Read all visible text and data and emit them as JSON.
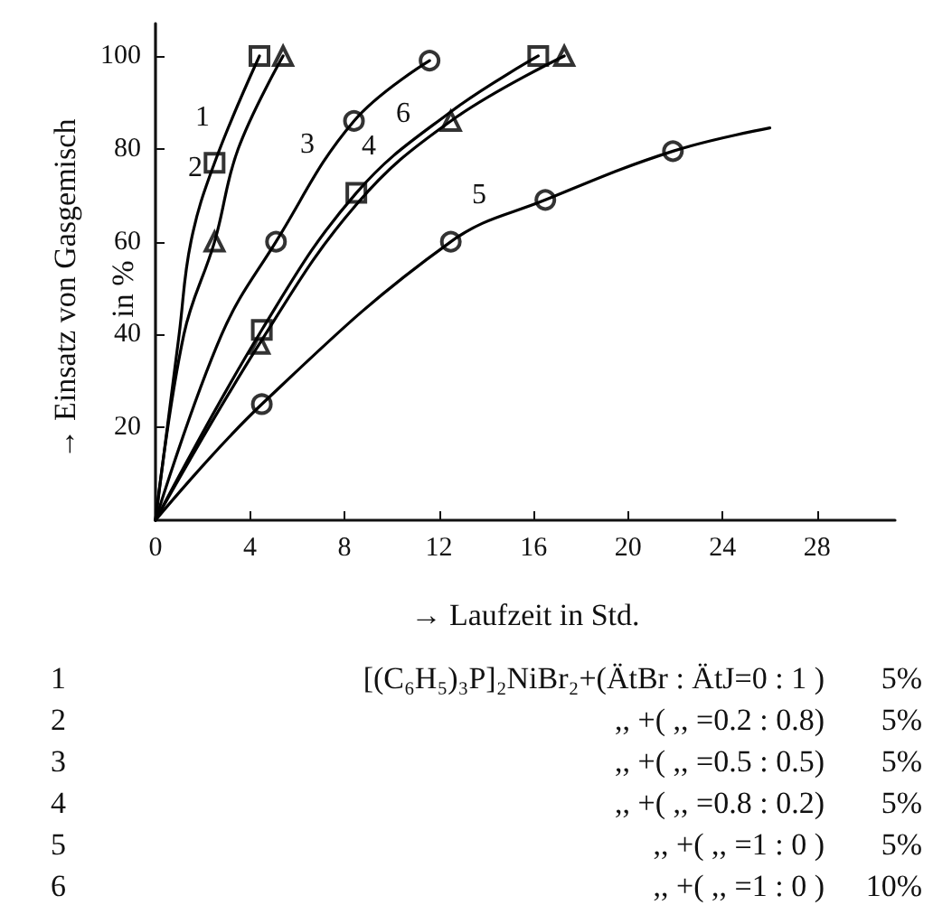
{
  "chart_data": {
    "type": "line",
    "xlabel": "→ Laufzeit in Std.",
    "ylabel": "→ Einsatz von Gasgemisch\nin %",
    "xlim": [
      0,
      31.3
    ],
    "xticks": [
      0,
      4,
      8,
      12,
      16,
      20,
      24,
      28
    ],
    "ylim": [
      0,
      107
    ],
    "yticks": [
      20,
      40,
      60,
      80,
      100
    ],
    "grid": false,
    "line_style": "solid",
    "series": [
      {
        "type": "line",
        "color": "#000000",
        "marker": "none",
        "x": [
          0,
          1.0,
          1.5,
          2.5,
          4.4
        ],
        "values": [
          0,
          40,
          60,
          77,
          100
        ]
      },
      {
        "type": "scatter",
        "color": "#000000",
        "marker": "square",
        "x": [
          2.5,
          4.4
        ],
        "values": [
          77,
          100
        ]
      },
      {
        "type": "line",
        "color": "#000000",
        "marker": "none",
        "x": [
          0,
          1.2,
          2.5,
          3.5,
          5.4
        ],
        "values": [
          0,
          40,
          60,
          80,
          100
        ]
      },
      {
        "type": "scatter",
        "color": "#000000",
        "marker": "triangle",
        "x": [
          2.5,
          5.4
        ],
        "values": [
          60,
          100
        ]
      },
      {
        "type": "line",
        "color": "#000000",
        "marker": "none",
        "x": [
          0,
          2.8,
          5.1,
          8.4,
          11.6
        ],
        "values": [
          0,
          40,
          60,
          86,
          99
        ]
      },
      {
        "type": "scatter",
        "color": "#000000",
        "marker": "circle",
        "x": [
          5.1,
          8.4,
          11.6
        ],
        "values": [
          60,
          86,
          99
        ]
      },
      {
        "type": "line",
        "color": "#000000",
        "marker": "none",
        "x": [
          0,
          4.4,
          8.5,
          12.5,
          17.3
        ],
        "values": [
          0,
          38,
          68,
          86,
          100
        ]
      },
      {
        "type": "scatter",
        "color": "#000000",
        "marker": "triangle",
        "x": [
          4.4,
          12.5,
          17.3
        ],
        "values": [
          38,
          86,
          100
        ]
      },
      {
        "type": "line",
        "color": "#000000",
        "marker": "none",
        "x": [
          0,
          4.5,
          12.5,
          16.5,
          21.9,
          26.0
        ],
        "values": [
          0,
          25,
          60,
          69,
          79.5,
          84.5
        ]
      },
      {
        "type": "scatter",
        "color": "#000000",
        "marker": "circle",
        "x": [
          4.5,
          12.5,
          16.5,
          21.9
        ],
        "values": [
          25,
          60,
          69,
          79.5
        ]
      },
      {
        "type": "line",
        "color": "#000000",
        "marker": "none",
        "x": [
          0,
          4.5,
          8.5,
          12.5,
          16.2
        ],
        "values": [
          0,
          41,
          70.5,
          88,
          100
        ]
      },
      {
        "type": "scatter",
        "color": "#000000",
        "marker": "square",
        "x": [
          4.5,
          8.5,
          16.2
        ],
        "values": [
          41,
          70.5,
          100
        ]
      }
    ],
    "annotations": [
      "1",
      "2",
      "3",
      "4",
      "5",
      "6",
      "1 [(C₆H₅)₃P]₂NiBr₂+(ÄtBr : ÄtJ=0 : 1 ) 5%",
      "2 ,, +( ,, =0.2 : 0.8) 5%",
      "3 ,, +( ,, =0.5 : 0.5) 5%",
      "4 ,, +( ,, =0.8 : 0.2) 5%",
      "5 ,, +( ,, =1 : 0 ) 5%",
      "6 ,, +( ,, =1 : 0 ) 10%"
    ]
  }
}
